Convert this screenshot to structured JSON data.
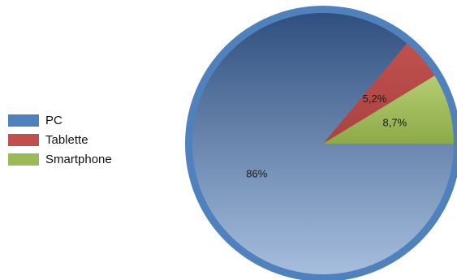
{
  "chart_data": {
    "type": "pie",
    "categories": [
      "PC",
      "Tablette",
      "Smartphone"
    ],
    "values": [
      86,
      5.2,
      8.7
    ],
    "labels": [
      "86%",
      "5,2%",
      "8,7%"
    ],
    "colors": [
      "#4f81bd",
      "#c0504d",
      "#9bbb59"
    ],
    "legend_position": "left"
  }
}
